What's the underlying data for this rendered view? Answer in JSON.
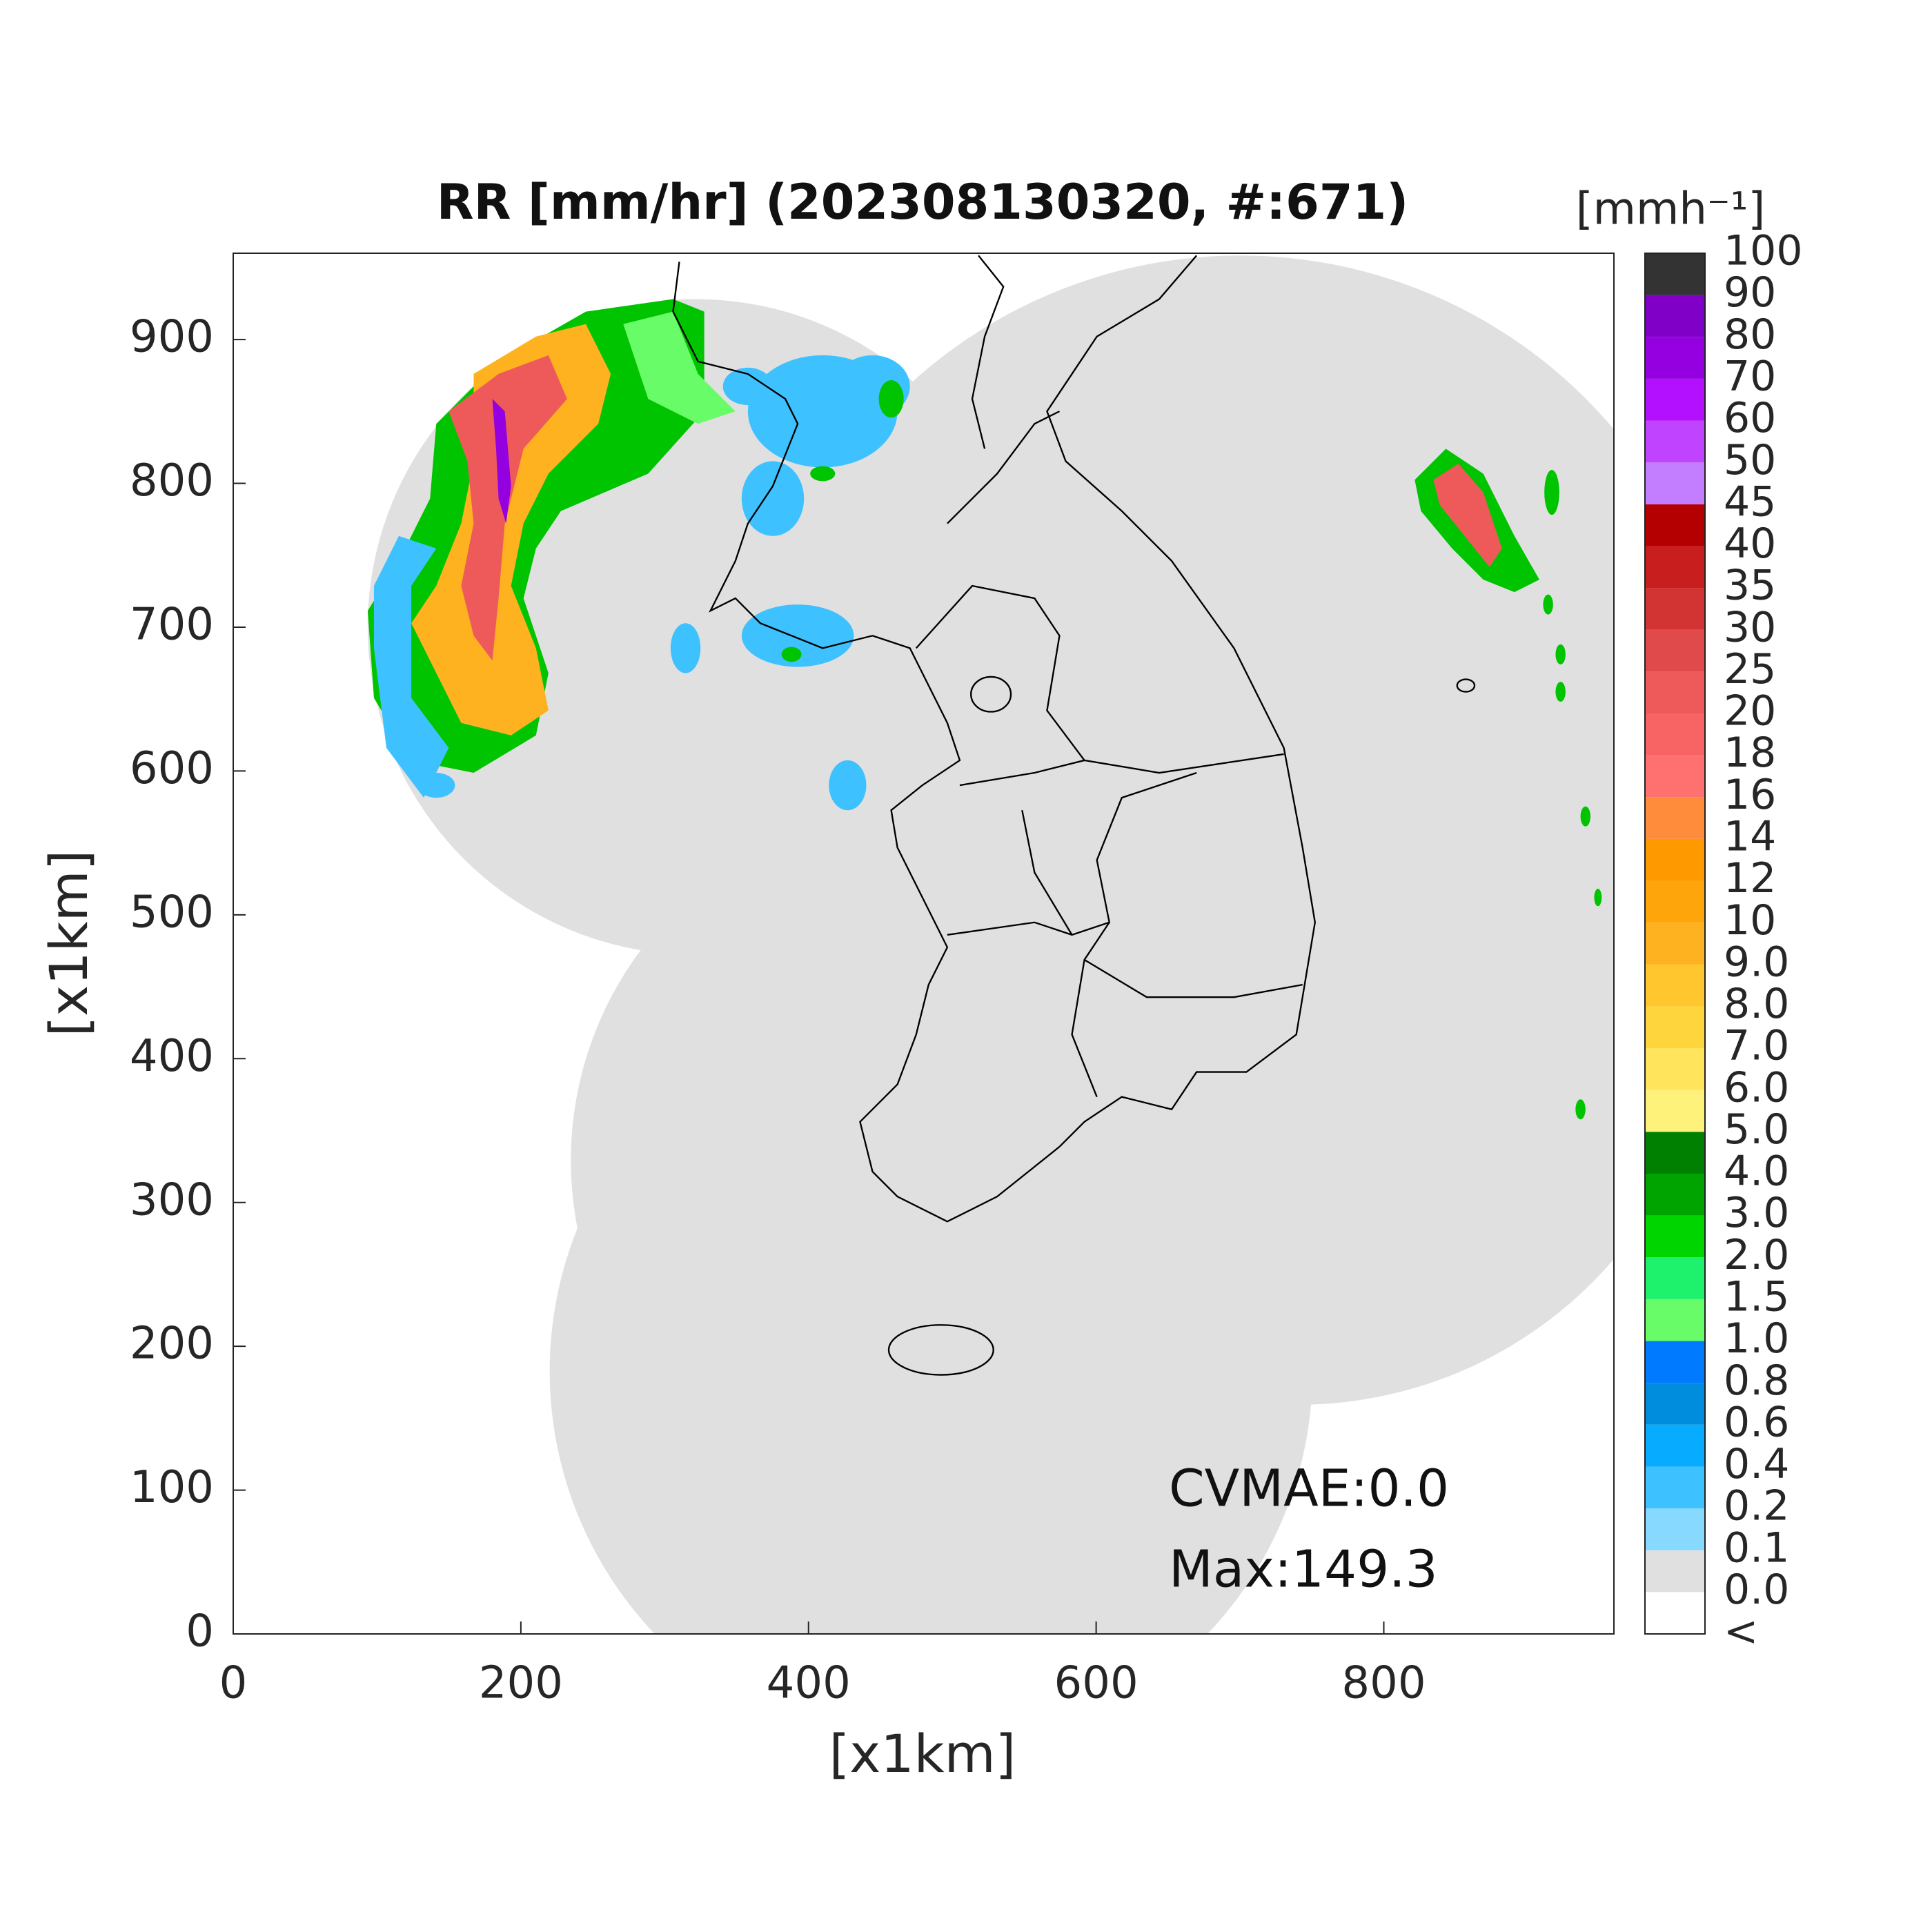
{
  "title": "RR [mm/hr] (202308130320, #:671)",
  "axes": {
    "xlabel": "[x1km]",
    "ylabel": "[x1km]",
    "xlim": [
      0,
      960
    ],
    "ylim": [
      0,
      960
    ],
    "xticks": [
      0,
      200,
      400,
      600,
      800
    ],
    "yticks": [
      0,
      100,
      200,
      300,
      400,
      500,
      600,
      700,
      800,
      900
    ]
  },
  "colorbar": {
    "unit": "[mmh⁻¹]",
    "labels": [
      "<",
      "0.0",
      "0.1",
      "0.2",
      "0.4",
      "0.6",
      "0.8",
      "1.0",
      "1.5",
      "2.0",
      "3.0",
      "4.0",
      "5.0",
      "6.0",
      "7.0",
      "8.0",
      "9.0",
      "10",
      "12",
      "14",
      "16",
      "18",
      "20",
      "25",
      "30",
      "35",
      "40",
      "45",
      "50",
      "60",
      "70",
      "80",
      "90",
      "100"
    ],
    "colors": [
      "#ffffff",
      "#e0e0e0",
      "#87d9ff",
      "#3ec1ff",
      "#07abff",
      "#008dde",
      "#007bff",
      "#69fc69",
      "#1ef26d",
      "#00d500",
      "#00a400",
      "#008000",
      "#fff27a",
      "#ffe45c",
      "#ffd53d",
      "#ffc62e",
      "#ffb21f",
      "#ffa50c",
      "#ff9900",
      "#ff8c3a",
      "#ff7070",
      "#f86464",
      "#ee5a5a",
      "#e04a4a",
      "#d23434",
      "#c81e1e",
      "#b40000",
      "#c37eff",
      "#c044ff",
      "#b310ff",
      "#9400e0",
      "#8000c8",
      "#333333"
    ]
  },
  "annotations": [
    "CVMAE:0.0",
    "Max:149.3"
  ]
}
